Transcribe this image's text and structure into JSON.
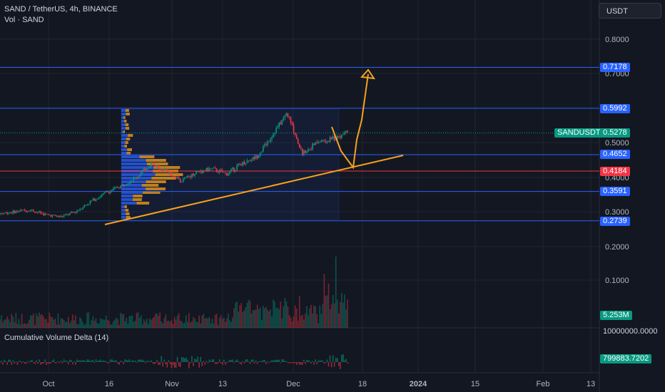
{
  "header": {
    "title": "SAND / TetherUS, 4h, BINANCE",
    "volume_label": "Vol · SAND",
    "currency": "USDT"
  },
  "indicators": {
    "cvd_label": "Cumulative Volume Delta (14)",
    "cvd_value": "799883.7202",
    "volume_value": "5.253M",
    "volume_axis_label": "10000000.0000"
  },
  "price_axis": {
    "ticks": [
      "0.8000",
      "0.7000",
      "0.5000",
      "0.4000",
      "0.3000",
      "0.2000",
      "0.1000"
    ]
  },
  "time_axis": {
    "ticks": [
      "Oct",
      "16",
      "Nov",
      "13",
      "Dec",
      "18",
      "2024",
      "15",
      "Feb",
      "13"
    ]
  },
  "price_lines": [
    {
      "label": "0.7178",
      "color": "#2962ff"
    },
    {
      "label": "0.5992",
      "color": "#2962ff"
    },
    {
      "label": "0.4652",
      "color": "#2962ff"
    },
    {
      "label": "0.4184",
      "color": "#f23645"
    },
    {
      "label": "0.3591",
      "color": "#2962ff"
    },
    {
      "label": "0.2739",
      "color": "#2962ff"
    }
  ],
  "symbol_tag": {
    "symbol": "SANDUSDT",
    "price": "0.5278",
    "color": "#089981"
  },
  "colors": {
    "up": "#089981",
    "down": "#f23645",
    "trend": "#f7a21c",
    "level": "#2962ff",
    "vp_up": "#2962ff",
    "vp_down": "#f7a21c"
  },
  "chart_data": {
    "type": "candlestick",
    "title": "SAND / TetherUS, 4h, BINANCE",
    "price_levels": [
      0.7178,
      0.5992,
      0.4652,
      0.4184,
      0.3591,
      0.2739
    ],
    "last_price": 0.5278,
    "last_volume": "5.253M",
    "price_series": {
      "x": [
        "Sep 26",
        "Oct 1",
        "Oct 6",
        "Oct 11",
        "Oct 16",
        "Oct 21",
        "Oct 26",
        "Nov 1",
        "Nov 6",
        "Nov 10",
        "Nov 13",
        "Nov 17",
        "Nov 21",
        "Nov 25",
        "Nov 29",
        "Dec 1",
        "Dec 4",
        "Dec 7",
        "Dec 9",
        "Dec 10",
        "Dec 11",
        "Dec 12",
        "Dec 13",
        "Dec 14"
      ],
      "close": [
        0.295,
        0.3,
        0.305,
        0.292,
        0.285,
        0.3,
        0.33,
        0.355,
        0.375,
        0.4,
        0.44,
        0.42,
        0.39,
        0.415,
        0.425,
        0.41,
        0.44,
        0.46,
        0.52,
        0.585,
        0.47,
        0.5,
        0.51,
        0.528
      ]
    },
    "projection": {
      "x": [
        "Dec 14",
        "Dec 18",
        "Dec 20"
      ],
      "y": [
        0.528,
        0.43,
        0.72
      ]
    },
    "trendline": {
      "x": [
        "Oct 16",
        "Dec 22"
      ],
      "y": [
        0.2739,
        0.455
      ]
    },
    "yticks": [
      0.8,
      0.7,
      0.5,
      0.4,
      0.3,
      0.2,
      0.1
    ],
    "xticks": [
      "Oct",
      "16",
      "Nov",
      "13",
      "Dec",
      "18",
      "2024",
      "15",
      "Feb",
      "13"
    ]
  }
}
